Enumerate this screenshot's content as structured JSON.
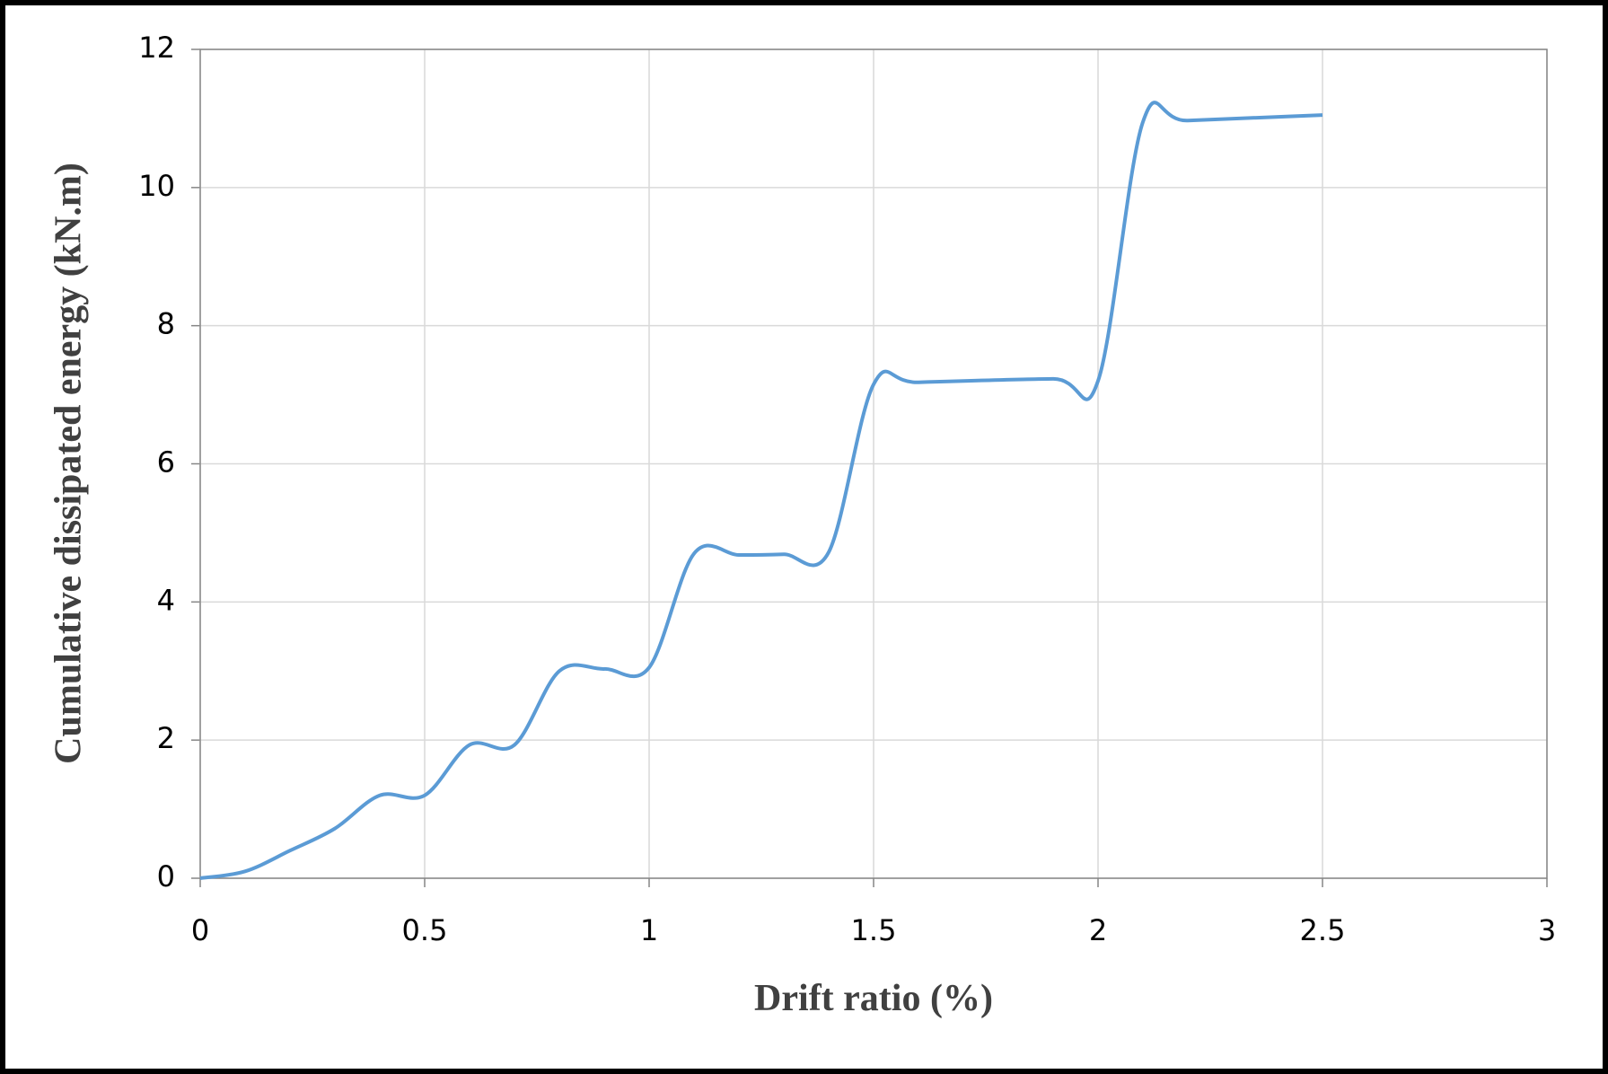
{
  "chart_data": {
    "type": "line",
    "x_label": "Drift ratio (%)",
    "y_label": "Cumulative dissipated energy  (kN.m)",
    "x": [
      0,
      0.1,
      0.2,
      0.3,
      0.4,
      0.5,
      0.6,
      0.7,
      0.8,
      0.9,
      1.0,
      1.1,
      1.2,
      1.3,
      1.4,
      1.5,
      1.6,
      1.9,
      2.0,
      2.1,
      2.2,
      2.5
    ],
    "series": [
      {
        "color": "#5b9bd5",
        "values": [
          0,
          0.1,
          0.4,
          0.72,
          1.2,
          1.2,
          1.93,
          1.93,
          3.0,
          3.03,
          3.05,
          4.7,
          4.68,
          4.69,
          4.72,
          7.15,
          7.18,
          7.23,
          7.2,
          10.95,
          10.97,
          11.05
        ]
      }
    ],
    "xlim": [
      0,
      3
    ],
    "xticks": [
      0,
      0.5,
      1,
      1.5,
      2,
      2.5,
      3
    ],
    "ylim": [
      0,
      12
    ],
    "yticks": [
      0,
      2,
      4,
      6,
      8,
      10,
      12
    ],
    "grid": true,
    "smooth": true
  }
}
